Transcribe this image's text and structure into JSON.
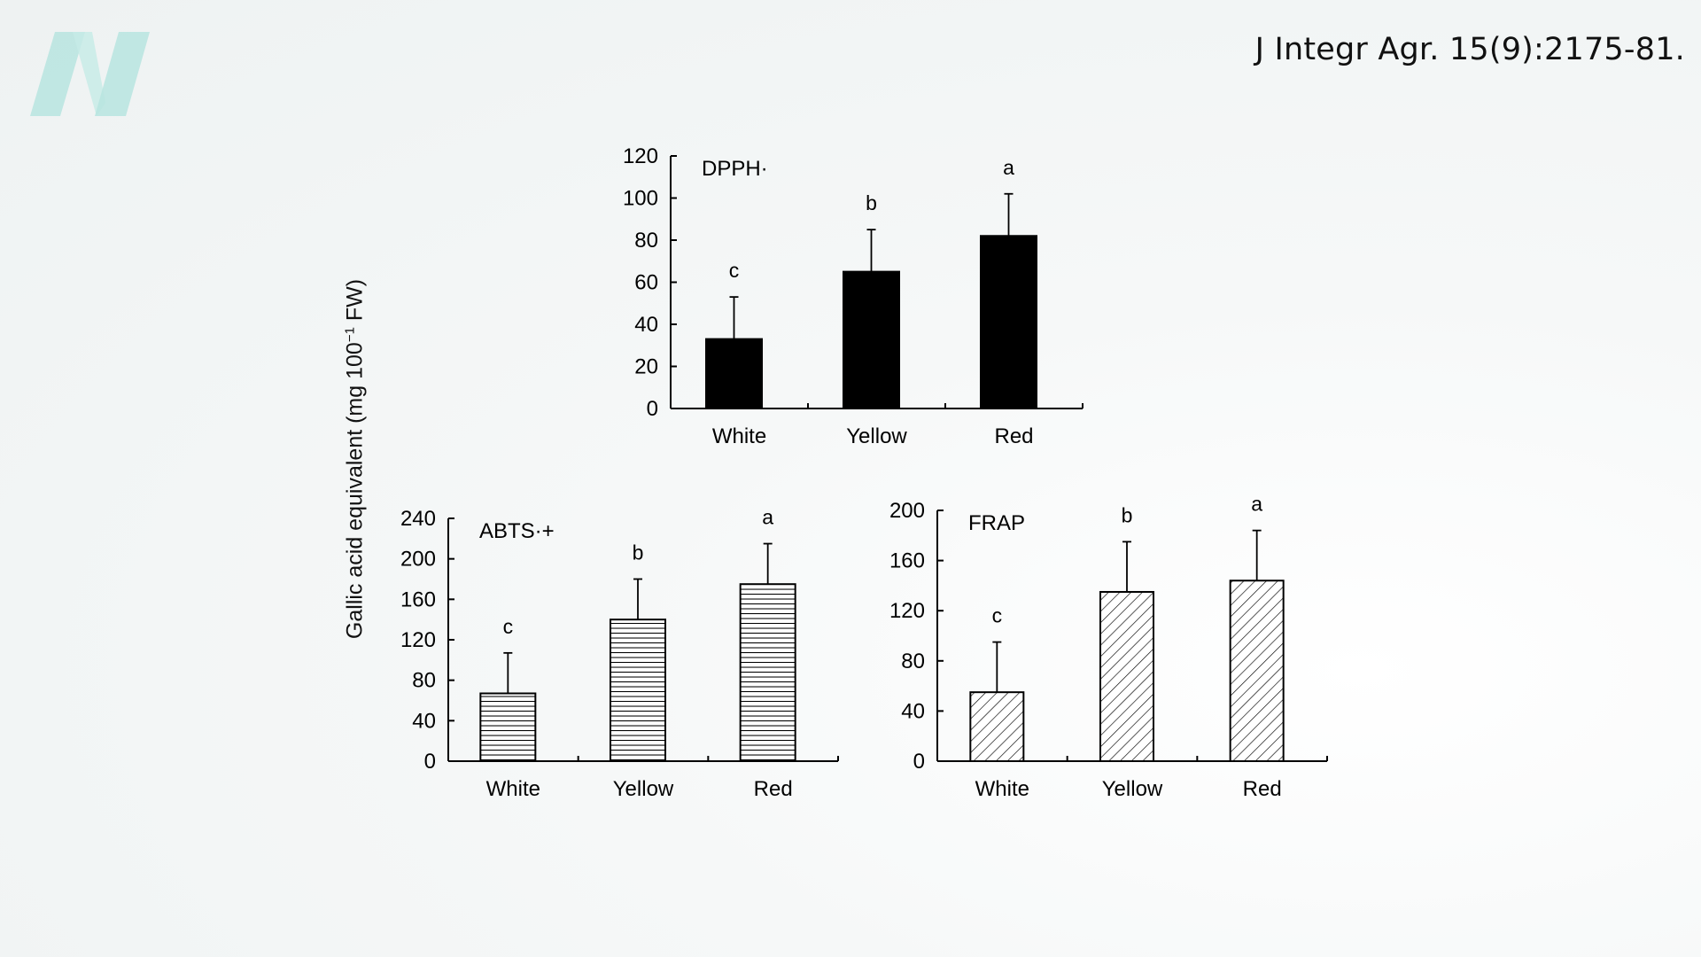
{
  "header": {
    "citation": "J Integr Agr. 15(9):2175-81.",
    "logo_letter": "N",
    "logo_color": "#b7e4df"
  },
  "figure": {
    "shared_ylabel_main": "Gallic acid equivalent (mg 100",
    "shared_ylabel_sup": "−1",
    "shared_ylabel_end": " FW)"
  },
  "chart_data": [
    {
      "type": "bar",
      "title": "DPPH·",
      "categories": [
        "White",
        "Yellow",
        "Red"
      ],
      "values": [
        33,
        65,
        82
      ],
      "error_upper": [
        53,
        85,
        102
      ],
      "significance": [
        "c",
        "b",
        "a"
      ],
      "ylabel": "Gallic acid equivalent (mg 100⁻¹ FW)",
      "ylim": [
        0,
        120
      ],
      "yticks": [
        0,
        20,
        40,
        60,
        80,
        100,
        120
      ],
      "fill": "solid-black",
      "grid": false
    },
    {
      "type": "bar",
      "title": "ABTS·+",
      "categories": [
        "White",
        "Yellow",
        "Red"
      ],
      "values": [
        67,
        140,
        175
      ],
      "error_upper": [
        107,
        180,
        215
      ],
      "significance": [
        "c",
        "b",
        "a"
      ],
      "ylabel": "Gallic acid equivalent (mg 100⁻¹ FW)",
      "ylim": [
        0,
        240
      ],
      "yticks": [
        0,
        40,
        80,
        120,
        160,
        200,
        240
      ],
      "fill": "horizontal-hatch",
      "grid": false
    },
    {
      "type": "bar",
      "title": "FRAP",
      "categories": [
        "White",
        "Yellow",
        "Red"
      ],
      "values": [
        55,
        135,
        144
      ],
      "error_upper": [
        95,
        175,
        184
      ],
      "significance": [
        "c",
        "b",
        "a"
      ],
      "ylabel": "Gallic acid equivalent (mg 100⁻¹ FW)",
      "ylim": [
        0,
        200
      ],
      "yticks": [
        0,
        40,
        80,
        120,
        160,
        200
      ],
      "fill": "diagonal-hatch",
      "grid": false
    }
  ]
}
